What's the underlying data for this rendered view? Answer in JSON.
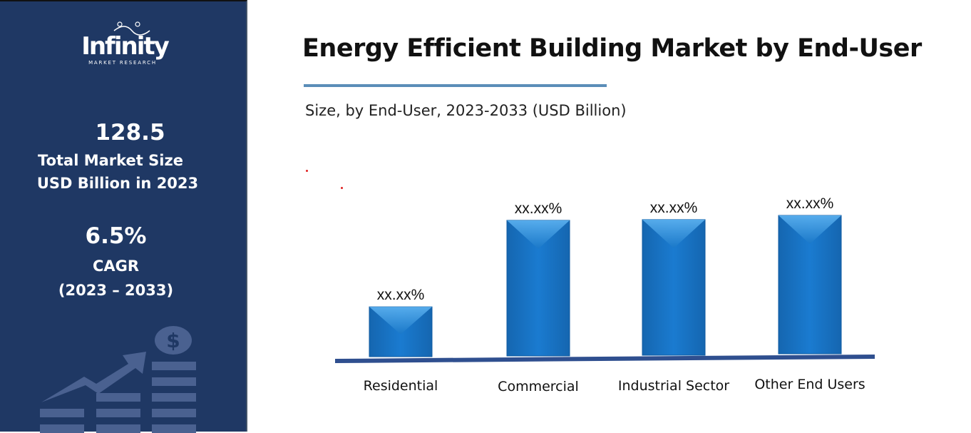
{
  "sidebar": {
    "logo_text": "Infinity",
    "logo_subtext": "MARKET RESEARCH",
    "market_size_value": "128.5",
    "market_size_label_1": "Total Market Size",
    "market_size_label_2": "USD Billion in 2023",
    "cagr_value": "6.5%",
    "cagr_label": "CAGR",
    "cagr_period": "(2023 – 2033)",
    "background_color": "#1f3864"
  },
  "chart_data": {
    "type": "bar",
    "title": "Energy Efficient Building Market by End-User",
    "subtitle": "Size, by End-User, 2023-2033 (USD Billion)",
    "categories": [
      "Residential",
      "Commercial",
      "Industrial Sector",
      "Other End Users"
    ],
    "values": [
      36,
      98,
      98,
      100
    ],
    "data_labels": [
      "xx.xx%",
      "xx.xx%",
      "xx.xx%",
      "xx.xx%"
    ],
    "ylim": [
      0,
      100
    ],
    "grid": false,
    "bar_color": "#1a78c8",
    "axis_color": "#2f4f8f"
  }
}
